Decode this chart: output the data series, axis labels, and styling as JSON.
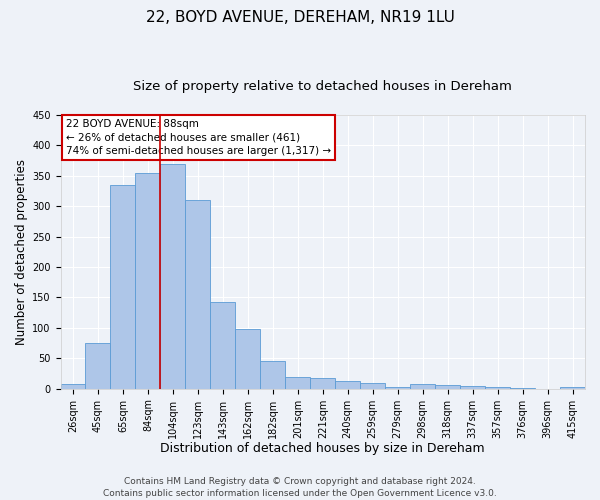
{
  "title1": "22, BOYD AVENUE, DEREHAM, NR19 1LU",
  "title2": "Size of property relative to detached houses in Dereham",
  "xlabel": "Distribution of detached houses by size in Dereham",
  "ylabel": "Number of detached properties",
  "bar_labels": [
    "26sqm",
    "45sqm",
    "65sqm",
    "84sqm",
    "104sqm",
    "123sqm",
    "143sqm",
    "162sqm",
    "182sqm",
    "201sqm",
    "221sqm",
    "240sqm",
    "259sqm",
    "279sqm",
    "298sqm",
    "318sqm",
    "337sqm",
    "357sqm",
    "376sqm",
    "396sqm",
    "415sqm"
  ],
  "bar_heights": [
    7,
    75,
    335,
    355,
    370,
    310,
    143,
    99,
    46,
    20,
    18,
    13,
    10,
    3,
    7,
    6,
    4,
    3,
    1,
    0,
    3
  ],
  "bar_color": "#aec6e8",
  "bar_edge_color": "#5b9bd5",
  "bar_width": 1.0,
  "vline_x": 3.5,
  "vline_color": "#cc0000",
  "ylim": [
    0,
    450
  ],
  "yticks": [
    0,
    50,
    100,
    150,
    200,
    250,
    300,
    350,
    400,
    450
  ],
  "annotation_title": "22 BOYD AVENUE: 88sqm",
  "annotation_line1": "← 26% of detached houses are smaller (461)",
  "annotation_line2": "74% of semi-detached houses are larger (1,317) →",
  "annotation_box_color": "#ffffff",
  "annotation_box_edge": "#cc0000",
  "footer1": "Contains HM Land Registry data © Crown copyright and database right 2024.",
  "footer2": "Contains public sector information licensed under the Open Government Licence v3.0.",
  "bg_color": "#eef2f8",
  "plot_bg_color": "#eef2f8",
  "title1_fontsize": 11,
  "title2_fontsize": 9.5,
  "xlabel_fontsize": 9,
  "ylabel_fontsize": 8.5,
  "tick_fontsize": 7,
  "footer_fontsize": 6.5,
  "annotation_fontsize": 7.5
}
